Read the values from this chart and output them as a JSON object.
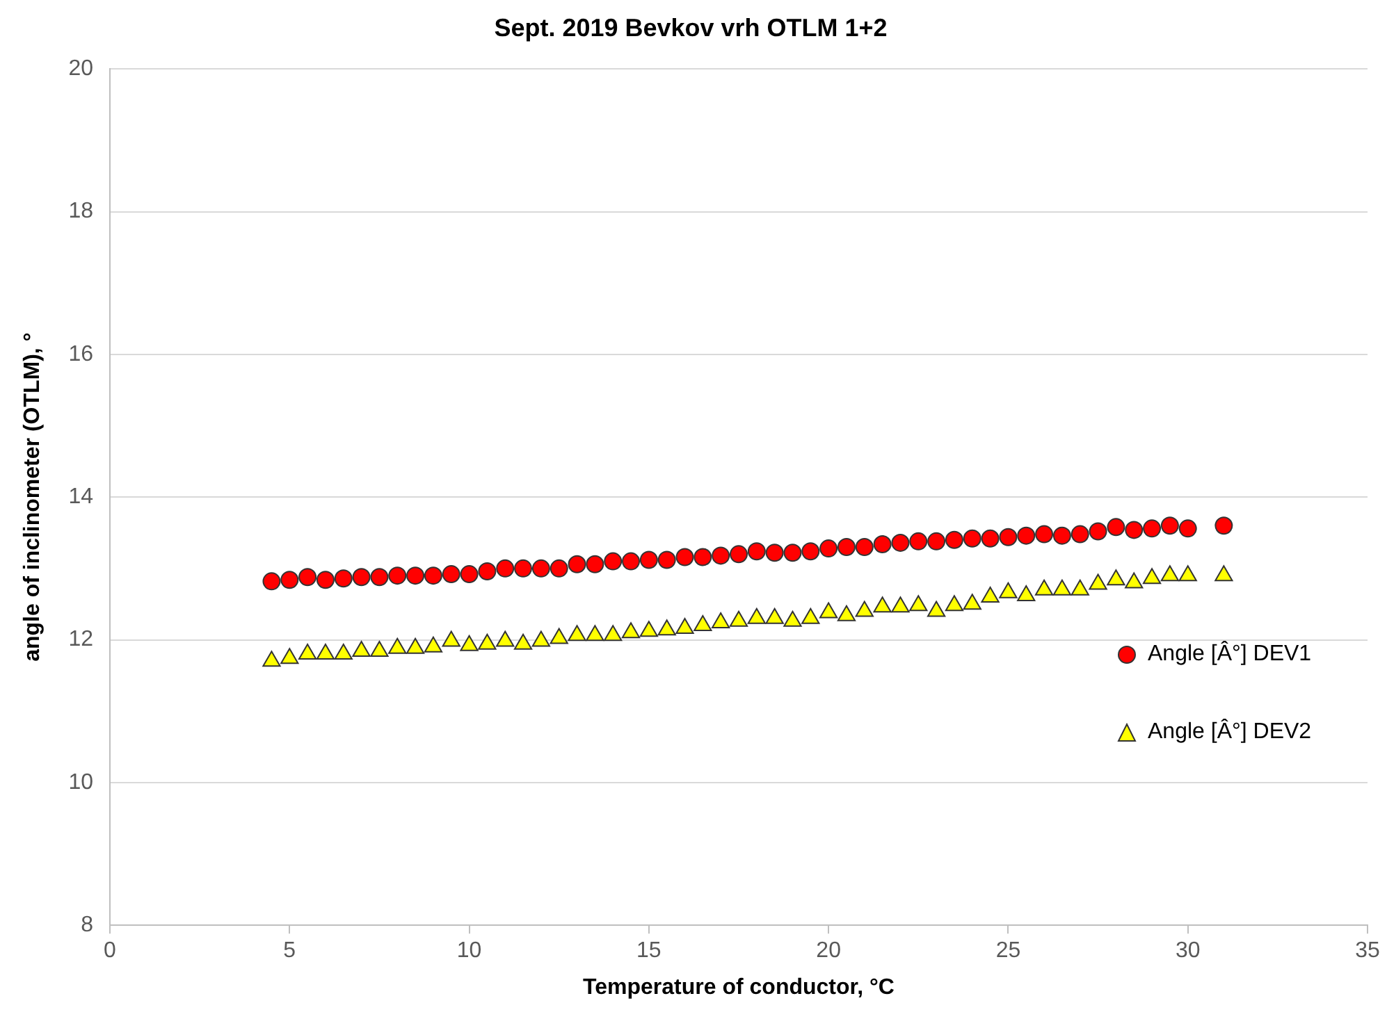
{
  "chart_data": {
    "type": "scatter",
    "title": "Sept. 2019 Bevkov vrh OTLM 1+2",
    "xlabel": "Temperature of conductor, °C",
    "ylabel": "angle of inclinometer (OTLM), °",
    "x": [
      4.5,
      5,
      5.5,
      6,
      6.5,
      7,
      7.5,
      8,
      8.5,
      9,
      9.5,
      10,
      10.5,
      11,
      11.5,
      12,
      12.5,
      13,
      13.5,
      14,
      14.5,
      15,
      15.5,
      16,
      16.5,
      17,
      17.5,
      18,
      18.5,
      19,
      19.5,
      20,
      20.5,
      21,
      21.5,
      22,
      22.5,
      23,
      23.5,
      24,
      24.5,
      25,
      25.5,
      26,
      26.5,
      27,
      27.5,
      28,
      28.5,
      29,
      29.5,
      30,
      31
    ],
    "series": [
      {
        "name": "Angle [Â°] DEV1",
        "color": "#ff0000",
        "marker": "circle",
        "values": [
          12.82,
          12.84,
          12.88,
          12.84,
          12.86,
          12.88,
          12.88,
          12.9,
          12.9,
          12.9,
          12.92,
          12.92,
          12.96,
          13.0,
          13.0,
          13.0,
          13.0,
          13.06,
          13.06,
          13.1,
          13.1,
          13.12,
          13.12,
          13.16,
          13.16,
          13.18,
          13.2,
          13.24,
          13.22,
          13.22,
          13.24,
          13.28,
          13.3,
          13.3,
          13.34,
          13.36,
          13.38,
          13.38,
          13.4,
          13.42,
          13.42,
          13.44,
          13.46,
          13.48,
          13.46,
          13.48,
          13.52,
          13.58,
          13.54,
          13.56,
          13.6,
          13.56,
          13.6
        ]
      },
      {
        "name": "Angle [Â°] DEV2",
        "color": "#ffff00",
        "marker": "triangle",
        "values": [
          11.7,
          11.74,
          11.8,
          11.8,
          11.8,
          11.84,
          11.84,
          11.88,
          11.88,
          11.9,
          11.98,
          11.92,
          11.94,
          11.98,
          11.94,
          11.98,
          12.02,
          12.06,
          12.06,
          12.06,
          12.1,
          12.12,
          12.14,
          12.16,
          12.2,
          12.24,
          12.26,
          12.3,
          12.3,
          12.26,
          12.3,
          12.38,
          12.34,
          12.4,
          12.46,
          12.46,
          12.48,
          12.4,
          12.48,
          12.5,
          12.6,
          12.66,
          12.62,
          12.7,
          12.7,
          12.7,
          12.78,
          12.84,
          12.8,
          12.86,
          12.9,
          12.9,
          12.9
        ]
      }
    ],
    "xlim": [
      0,
      35
    ],
    "xticks": [
      0,
      5,
      10,
      15,
      20,
      25,
      30,
      35
    ],
    "ylim": [
      8,
      20
    ],
    "yticks": [
      8,
      10,
      12,
      14,
      16,
      18,
      20
    ],
    "grid": "y",
    "legend": "right"
  }
}
